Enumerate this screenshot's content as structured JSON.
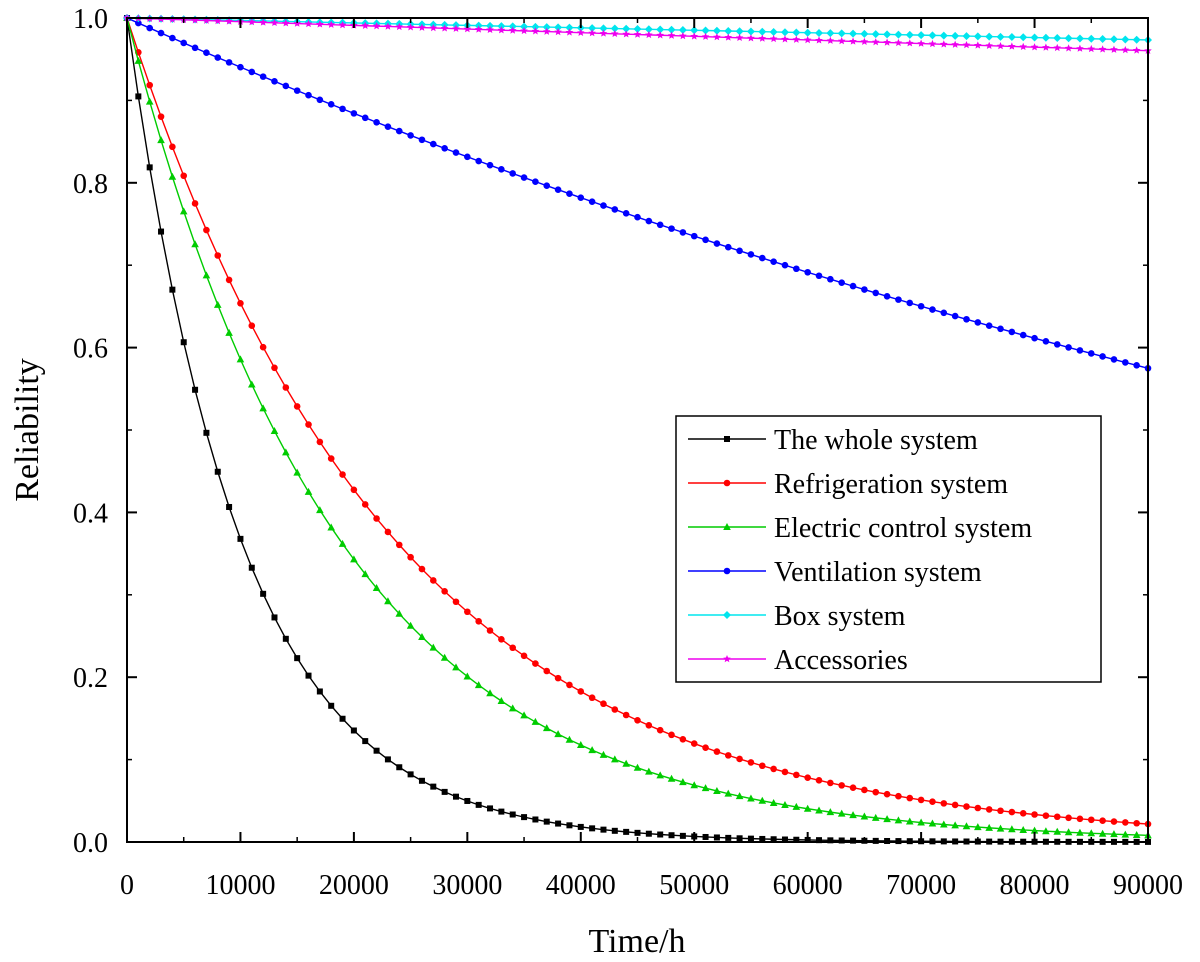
{
  "chart_data": {
    "type": "line",
    "title": "",
    "xlabel": "Time/h",
    "ylabel": "Reliability",
    "xlim": [
      0,
      90000
    ],
    "ylim": [
      0,
      1.0
    ],
    "x_ticks": [
      0,
      10000,
      20000,
      30000,
      40000,
      50000,
      60000,
      70000,
      80000,
      90000
    ],
    "x_tick_labels": [
      "0",
      "10000",
      "20000",
      "30000",
      "40000",
      "50000",
      "60000",
      "70000",
      "80000",
      "90000"
    ],
    "y_ticks": [
      0.0,
      0.2,
      0.4,
      0.6,
      0.8,
      1.0
    ],
    "y_tick_labels": [
      "0.0",
      "0.2",
      "0.4",
      "0.6",
      "0.8",
      "1.0"
    ],
    "grid": false,
    "legend_position": "center-right",
    "sample_step": 1000,
    "series": [
      {
        "name": "The whole system",
        "color": "#000000",
        "marker": "square",
        "rate": 0.0001
      },
      {
        "name": "Refrigeration system",
        "color": "#ff0000",
        "marker": "circle",
        "rate": 4.25e-05
      },
      {
        "name": "Electric control system",
        "color": "#00cc00",
        "marker": "triangle",
        "rate": 5.35e-05
      },
      {
        "name": "Ventilation system",
        "color": "#0000ff",
        "marker": "circle",
        "rate": 6.15e-06
      },
      {
        "name": "Box system",
        "color": "#00e5ee",
        "marker": "diamond",
        "rate": 3e-07
      },
      {
        "name": "Accessories",
        "color": "#ee00ee",
        "marker": "star",
        "rate": 4.5e-07
      }
    ]
  }
}
